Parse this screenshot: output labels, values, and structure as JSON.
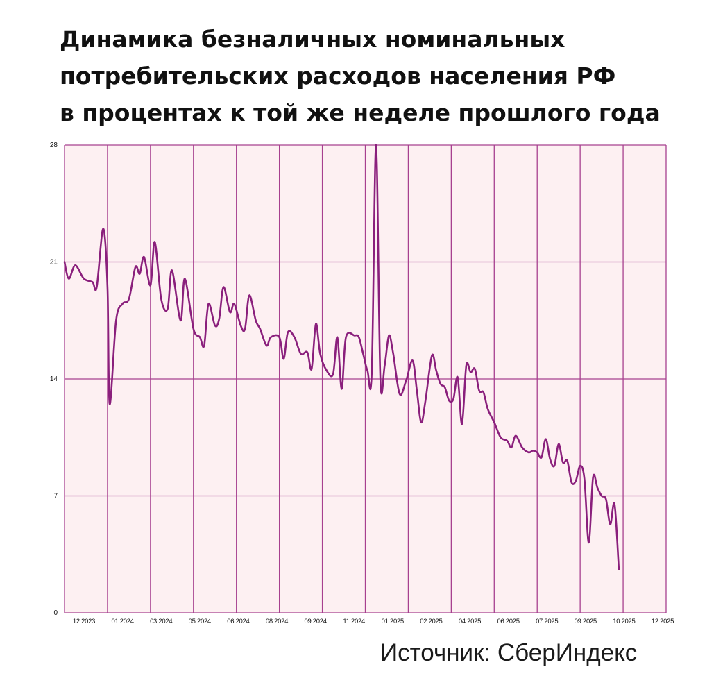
{
  "title": {
    "lines": [
      "Динамика безналичных номинальных",
      "потребительских расходов населения РФ",
      "в процентах к той же неделе прошлого года"
    ]
  },
  "source": "Источник: СберИндекс",
  "colors": {
    "plot_bg": "#fdf0f2",
    "grid": "#a7408f",
    "line": "#8a1f7c",
    "text": "#111111"
  },
  "chart_data": {
    "type": "line",
    "xlabel": "",
    "ylabel": "",
    "ylim": [
      0,
      28
    ],
    "yticks": [
      0,
      7,
      14,
      21,
      28
    ],
    "ytick_labels": [
      "0",
      "7",
      "14",
      "21",
      "28"
    ],
    "xlim": [
      0,
      14
    ],
    "xtick_labels": [
      "12.2023",
      "01.2024",
      "03.2024",
      "05.2024",
      "06.2024",
      "08.2024",
      "09.2024",
      "11.2024",
      "01.2025",
      "02.2025",
      "04.2025",
      "06.2025",
      "07.2025",
      "09.2025",
      "10.2025",
      "12.2025"
    ],
    "grid": true,
    "legend": "none",
    "series": [
      {
        "values": [
          [
            0.0,
            21.0
          ],
          [
            0.1,
            20.0
          ],
          [
            0.25,
            20.8
          ],
          [
            0.45,
            20.0
          ],
          [
            0.65,
            19.8
          ],
          [
            0.75,
            19.5
          ],
          [
            0.9,
            23.0
          ],
          [
            1.0,
            19.5
          ],
          [
            1.05,
            12.5
          ],
          [
            1.2,
            17.5
          ],
          [
            1.35,
            18.5
          ],
          [
            1.5,
            18.8
          ],
          [
            1.65,
            20.7
          ],
          [
            1.75,
            20.3
          ],
          [
            1.85,
            21.3
          ],
          [
            2.0,
            19.6
          ],
          [
            2.1,
            22.2
          ],
          [
            2.25,
            18.8
          ],
          [
            2.4,
            18.2
          ],
          [
            2.5,
            20.5
          ],
          [
            2.7,
            17.5
          ],
          [
            2.8,
            20.0
          ],
          [
            3.0,
            17.0
          ],
          [
            3.15,
            16.5
          ],
          [
            3.25,
            16.0
          ],
          [
            3.35,
            18.5
          ],
          [
            3.5,
            17.2
          ],
          [
            3.6,
            17.6
          ],
          [
            3.7,
            19.5
          ],
          [
            3.85,
            18.0
          ],
          [
            3.95,
            18.5
          ],
          [
            4.1,
            17.2
          ],
          [
            4.2,
            17.0
          ],
          [
            4.3,
            19.0
          ],
          [
            4.45,
            17.5
          ],
          [
            4.55,
            17.0
          ],
          [
            4.7,
            16.0
          ],
          [
            4.8,
            16.5
          ],
          [
            5.0,
            16.5
          ],
          [
            5.1,
            15.2
          ],
          [
            5.2,
            16.8
          ],
          [
            5.35,
            16.5
          ],
          [
            5.5,
            15.5
          ],
          [
            5.65,
            15.6
          ],
          [
            5.75,
            14.6
          ],
          [
            5.85,
            17.3
          ],
          [
            5.95,
            15.5
          ],
          [
            6.1,
            14.5
          ],
          [
            6.25,
            14.3
          ],
          [
            6.35,
            16.5
          ],
          [
            6.45,
            13.4
          ],
          [
            6.55,
            16.5
          ],
          [
            6.75,
            16.6
          ],
          [
            6.85,
            16.5
          ],
          [
            6.95,
            15.5
          ],
          [
            7.05,
            14.5
          ],
          [
            7.15,
            14.4
          ],
          [
            7.25,
            28.0
          ],
          [
            7.35,
            14.0
          ],
          [
            7.45,
            14.8
          ],
          [
            7.55,
            16.6
          ],
          [
            7.65,
            15.5
          ],
          [
            7.8,
            13.1
          ],
          [
            7.95,
            13.9
          ],
          [
            8.1,
            15.1
          ],
          [
            8.2,
            13.3
          ],
          [
            8.3,
            11.4
          ],
          [
            8.4,
            12.7
          ],
          [
            8.55,
            15.4
          ],
          [
            8.65,
            14.5
          ],
          [
            8.75,
            13.7
          ],
          [
            8.85,
            13.5
          ],
          [
            8.95,
            12.7
          ],
          [
            9.05,
            12.8
          ],
          [
            9.15,
            14.1
          ],
          [
            9.25,
            11.3
          ],
          [
            9.35,
            14.8
          ],
          [
            9.45,
            14.4
          ],
          [
            9.55,
            14.6
          ],
          [
            9.65,
            13.3
          ],
          [
            9.75,
            13.2
          ],
          [
            9.85,
            12.2
          ],
          [
            10.0,
            11.4
          ],
          [
            10.15,
            10.5
          ],
          [
            10.3,
            10.3
          ],
          [
            10.4,
            9.9
          ],
          [
            10.5,
            10.6
          ],
          [
            10.65,
            9.9
          ],
          [
            10.8,
            9.6
          ],
          [
            10.9,
            9.7
          ],
          [
            11.0,
            9.6
          ],
          [
            11.1,
            9.3
          ],
          [
            11.2,
            10.4
          ],
          [
            11.3,
            9.2
          ],
          [
            11.4,
            8.8
          ],
          [
            11.5,
            10.1
          ],
          [
            11.6,
            9.0
          ],
          [
            11.7,
            9.1
          ],
          [
            11.8,
            7.8
          ],
          [
            11.9,
            7.9
          ],
          [
            12.0,
            8.8
          ],
          [
            12.1,
            8.0
          ],
          [
            12.2,
            4.2
          ],
          [
            12.3,
            8.1
          ],
          [
            12.4,
            7.5
          ],
          [
            12.5,
            7.0
          ],
          [
            12.6,
            6.8
          ],
          [
            12.7,
            5.3
          ],
          [
            12.8,
            6.5
          ],
          [
            12.9,
            2.6
          ]
        ]
      }
    ]
  }
}
